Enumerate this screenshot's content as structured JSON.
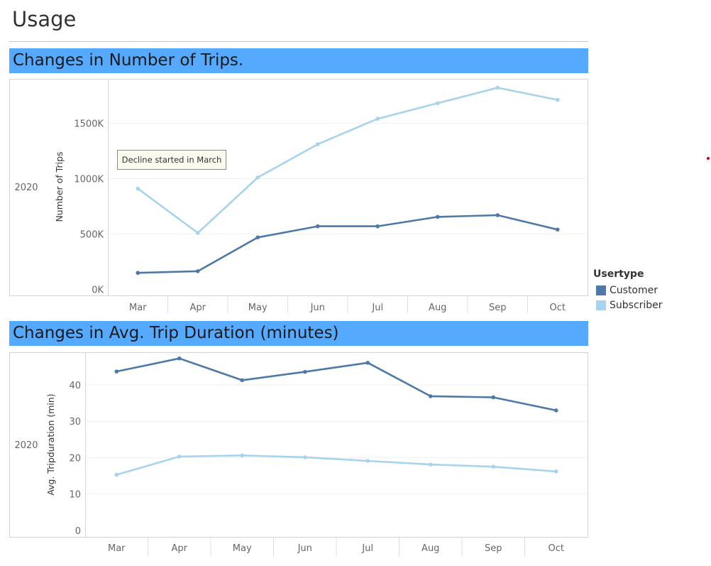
{
  "page": {
    "title": "Usage",
    "marker_color": "#cc0000"
  },
  "colors": {
    "banner": "#55aaff",
    "customer": "#4e79a7",
    "subscriber": "#a7d3ec"
  },
  "legend": {
    "title": "Usertype",
    "items": [
      {
        "label": "Customer",
        "color": "#4e79a7"
      },
      {
        "label": "Subscriber",
        "color": "#a7d3ec"
      }
    ]
  },
  "annotation": {
    "text": "Decline started in March"
  },
  "chart_data": [
    {
      "type": "line",
      "title": "Changes in Number of Trips.",
      "row_label": "2020",
      "ylabel": "Number of Trips",
      "xlabel": "",
      "categories": [
        "Mar",
        "Apr",
        "May",
        "Jun",
        "Jul",
        "Aug",
        "Sep",
        "Oct"
      ],
      "ytick_labels": [
        "0K",
        "500K",
        "1000K",
        "1500K"
      ],
      "yticks": [
        0,
        500000,
        1000000,
        1500000
      ],
      "ylim": [
        -60000,
        1900000
      ],
      "grid": true,
      "series": [
        {
          "name": "Customer",
          "color": "#4e79a7",
          "values": [
            150000,
            165000,
            470000,
            570000,
            570000,
            655000,
            670000,
            540000
          ]
        },
        {
          "name": "Subscriber",
          "color": "#a7d3ec",
          "values": [
            910000,
            510000,
            1010000,
            1310000,
            1540000,
            1680000,
            1820000,
            1710000
          ]
        }
      ]
    },
    {
      "type": "line",
      "title": "Changes in Avg. Trip Duration (minutes)",
      "row_label": "2020",
      "ylabel": "Avg. Tripduration (min)",
      "xlabel": "",
      "categories": [
        "Mar",
        "Apr",
        "May",
        "Jun",
        "Jul",
        "Aug",
        "Sep",
        "Oct"
      ],
      "ytick_labels": [
        "0",
        "10",
        "20",
        "30",
        "40"
      ],
      "yticks": [
        0,
        10,
        20,
        30,
        40
      ],
      "ylim": [
        -2,
        49
      ],
      "grid": true,
      "series": [
        {
          "name": "Customer",
          "color": "#4e79a7",
          "values": [
            43.7,
            47.3,
            41.3,
            43.6,
            46.1,
            36.9,
            36.6,
            33.0
          ]
        },
        {
          "name": "Subscriber",
          "color": "#a7d3ec",
          "values": [
            15.3,
            20.3,
            20.6,
            20.1,
            19.1,
            18.1,
            17.5,
            16.2
          ]
        }
      ]
    }
  ]
}
